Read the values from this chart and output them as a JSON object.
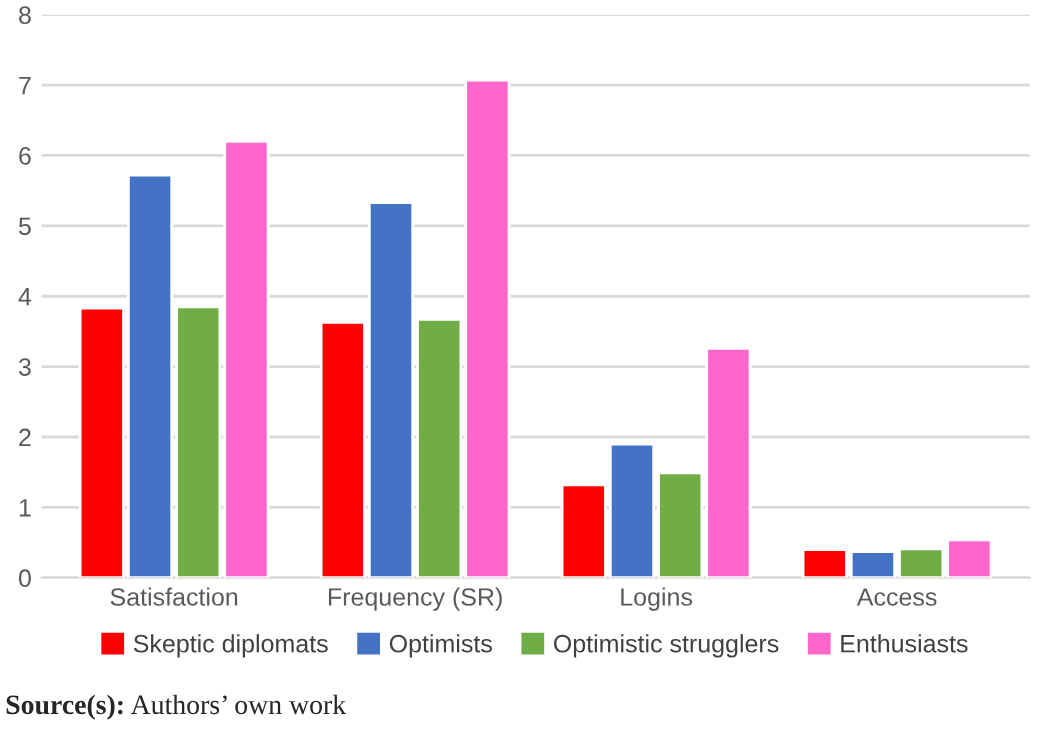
{
  "chart_data": {
    "type": "bar",
    "categories": [
      "Satisfaction",
      "Frequency (SR)",
      "Logins",
      "Access"
    ],
    "series": [
      {
        "name": "Skeptic diplomats",
        "color": "#ff0000",
        "values": [
          3.83,
          3.63,
          1.32,
          0.4
        ]
      },
      {
        "name": "Optimists",
        "color": "#4472c4",
        "values": [
          5.72,
          5.33,
          1.9,
          0.37
        ]
      },
      {
        "name": "Optimistic strugglers",
        "color": "#70ad47",
        "values": [
          3.85,
          3.67,
          1.49,
          0.41
        ]
      },
      {
        "name": "Enthusiasts",
        "color": "#ff66cc",
        "values": [
          6.2,
          7.07,
          3.26,
          0.54
        ]
      }
    ],
    "ylim": [
      0,
      8
    ],
    "yticks": [
      0,
      1,
      2,
      3,
      4,
      5,
      6,
      7,
      8
    ],
    "grid": "y",
    "legend": "bottom",
    "annotations": [
      "Source(s): Authors’ own work"
    ]
  }
}
